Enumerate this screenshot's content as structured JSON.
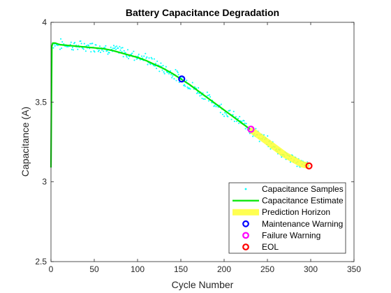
{
  "chart_data": {
    "type": "scatter",
    "title": "Battery Capacitance Degradation",
    "xlabel": "Cycle Number",
    "ylabel": "Capacitance (A)",
    "xlim": [
      0,
      350
    ],
    "ylim": [
      2.5,
      4
    ],
    "xticks": [
      0,
      50,
      100,
      150,
      200,
      250,
      300,
      350
    ],
    "yticks": [
      2.5,
      3,
      3.5,
      4
    ],
    "xtick_labels": [
      "0",
      "50",
      "100",
      "150",
      "200",
      "250",
      "300",
      "350"
    ],
    "ytick_labels": [
      "2.5",
      "3",
      "3.5",
      "4"
    ],
    "grid": false,
    "legend_position": "bottom-right",
    "colors": {
      "samples": "#00ffff",
      "estimate": "#00e600",
      "horizon": "#ffff33",
      "maintenance": "#0000ff",
      "failure": "#ff00ff",
      "eol": "#ff0000",
      "axis": "#262626"
    },
    "series": [
      {
        "name": "Capacitance Samples",
        "style": "scatter-dots",
        "x": [
          0,
          10,
          20,
          30,
          40,
          50,
          60,
          70,
          80,
          90,
          100,
          110,
          120,
          130,
          140,
          150,
          160,
          170,
          180,
          190,
          200,
          210,
          220,
          230,
          240,
          250,
          260,
          270,
          280,
          290,
          298
        ],
        "y": [
          3.87,
          3.86,
          3.86,
          3.85,
          3.85,
          3.85,
          3.84,
          3.83,
          3.82,
          3.8,
          3.79,
          3.77,
          3.74,
          3.71,
          3.68,
          3.65,
          3.61,
          3.57,
          3.53,
          3.49,
          3.45,
          3.41,
          3.37,
          3.33,
          3.29,
          3.25,
          3.21,
          3.17,
          3.14,
          3.11,
          3.1
        ]
      },
      {
        "name": "Capacitance Estimate",
        "style": "line",
        "x": [
          0,
          1,
          2,
          5,
          10,
          20,
          30,
          40,
          50,
          60,
          70,
          80,
          90,
          100,
          110,
          120,
          130,
          140,
          150,
          160,
          170,
          180,
          190,
          200,
          210,
          220,
          230
        ],
        "y": [
          3.09,
          3.85,
          3.87,
          3.87,
          3.86,
          3.855,
          3.85,
          3.845,
          3.84,
          3.835,
          3.825,
          3.81,
          3.795,
          3.78,
          3.76,
          3.735,
          3.71,
          3.68,
          3.645,
          3.61,
          3.57,
          3.53,
          3.49,
          3.45,
          3.41,
          3.37,
          3.33
        ]
      },
      {
        "name": "Prediction Horizon",
        "style": "thick-line",
        "x": [
          230,
          240,
          250,
          260,
          270,
          280,
          290,
          298
        ],
        "y": [
          3.33,
          3.29,
          3.25,
          3.21,
          3.17,
          3.14,
          3.11,
          3.1
        ]
      }
    ],
    "markers": [
      {
        "name": "Maintenance Warning",
        "x": 151,
        "y": 3.645
      },
      {
        "name": "Failure Warning",
        "x": 231,
        "y": 3.33
      },
      {
        "name": "EOL",
        "x": 298,
        "y": 3.1
      }
    ]
  }
}
